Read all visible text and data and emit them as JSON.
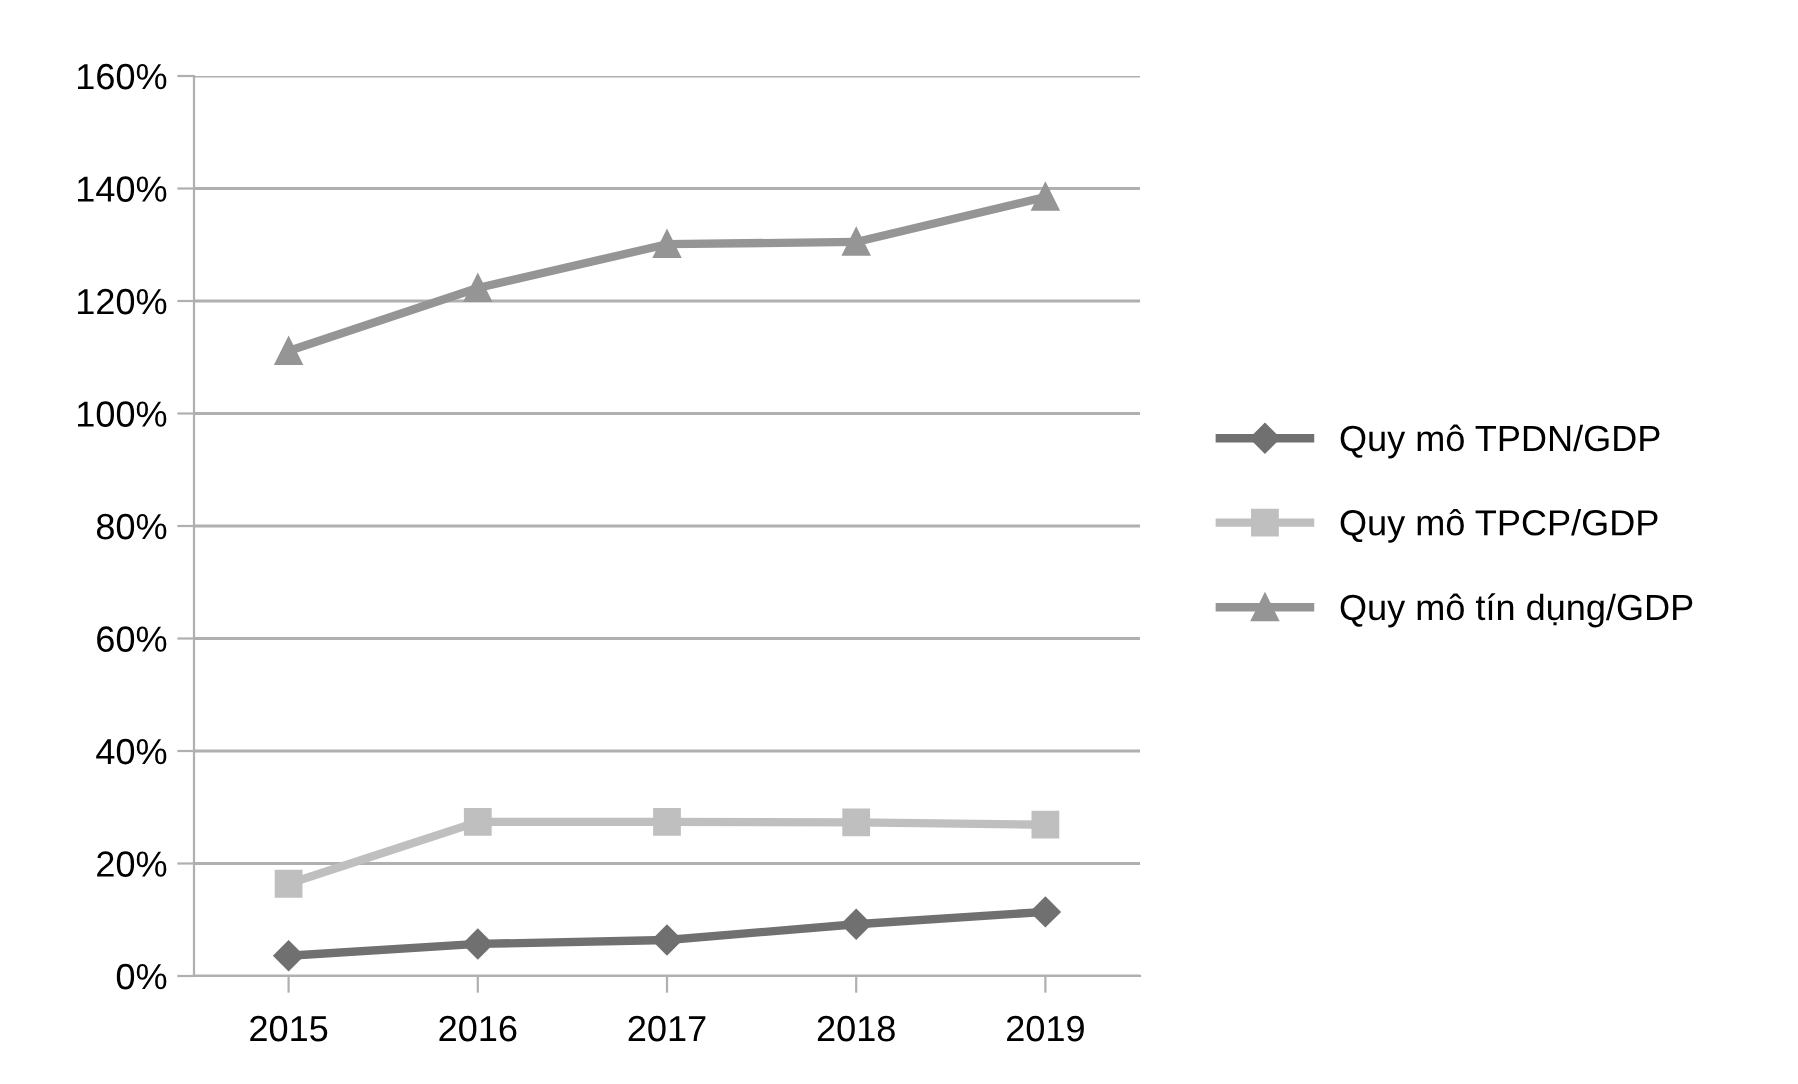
{
  "chart_data": {
    "type": "line",
    "categories": [
      "2015",
      "2016",
      "2017",
      "2018",
      "2019"
    ],
    "series": [
      {
        "name": "Quy mô TPDN/GDP",
        "color": "#707070",
        "marker": "diamond",
        "values": [
          3.6,
          5.7,
          6.4,
          9.2,
          11.4
        ]
      },
      {
        "name": "Quy mô TPCP/GDP",
        "color": "#bfbfbf",
        "marker": "square",
        "values": [
          16.4,
          27.4,
          27.4,
          27.3,
          26.9
        ]
      },
      {
        "name": "Quy mô tín dụng/GDP",
        "color": "#959595",
        "marker": "triangle",
        "values": [
          111.1,
          122.3,
          130.1,
          130.5,
          138.5
        ]
      }
    ],
    "ylim": [
      0,
      160
    ],
    "yticks": [
      {
        "value": 0,
        "label": "0%"
      },
      {
        "value": 20,
        "label": "20%"
      },
      {
        "value": 40,
        "label": "40%"
      },
      {
        "value": 60,
        "label": "60%"
      },
      {
        "value": 80,
        "label": "80%"
      },
      {
        "value": 100,
        "label": "100%"
      },
      {
        "value": 120,
        "label": "120%"
      },
      {
        "value": 140,
        "label": "140%"
      },
      {
        "value": 160,
        "label": "160%"
      }
    ],
    "grid": "y",
    "legend": "right",
    "line_style": "solid"
  }
}
